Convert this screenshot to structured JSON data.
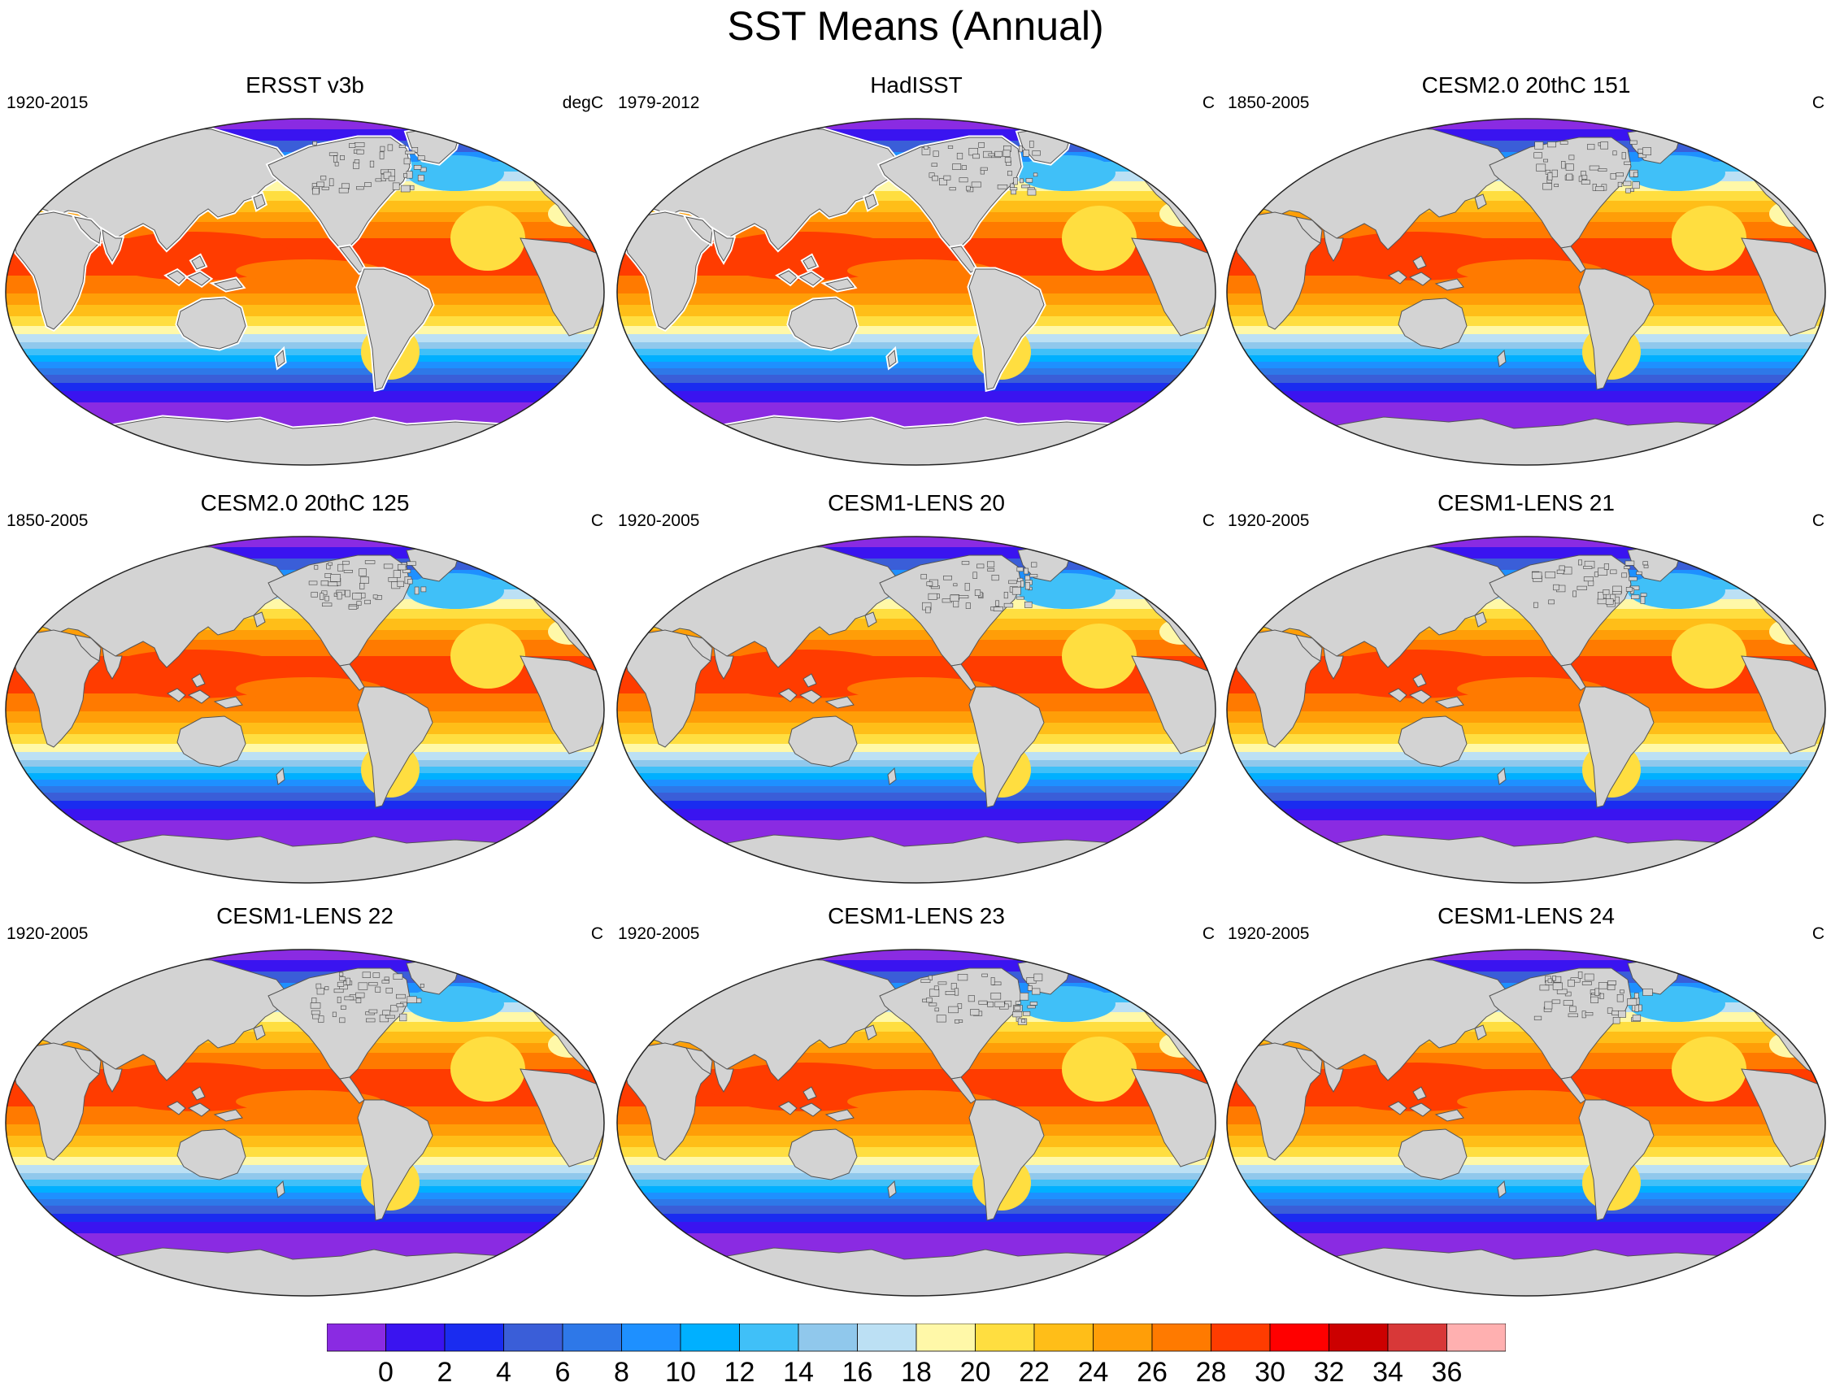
{
  "title": "SST Means (Annual)",
  "panels": [
    {
      "title": "ERSST v3b",
      "period": "1920-2015",
      "units": "degC",
      "coarse": true
    },
    {
      "title": "HadISST",
      "period": "1979-2012",
      "units": "C",
      "coarse": true
    },
    {
      "title": "CESM2.0 20thC 151",
      "period": "1850-2005",
      "units": "C",
      "coarse": false
    },
    {
      "title": "CESM2.0 20thC 125",
      "period": "1850-2005",
      "units": "C",
      "coarse": false
    },
    {
      "title": "CESM1-LENS 20",
      "period": "1920-2005",
      "units": "C",
      "coarse": false
    },
    {
      "title": "CESM1-LENS 21",
      "period": "1920-2005",
      "units": "C",
      "coarse": false
    },
    {
      "title": "CESM1-LENS 22",
      "period": "1920-2005",
      "units": "C",
      "coarse": false
    },
    {
      "title": "CESM1-LENS 23",
      "period": "1920-2005",
      "units": "C",
      "coarse": false
    },
    {
      "title": "CESM1-LENS 24",
      "period": "1920-2005",
      "units": "C",
      "coarse": false
    }
  ],
  "colorbar": {
    "labels": [
      "0",
      "2",
      "4",
      "6",
      "8",
      "10",
      "12",
      "14",
      "16",
      "18",
      "20",
      "22",
      "24",
      "26",
      "28",
      "30",
      "32",
      "34",
      "36"
    ],
    "colors": [
      "#8a2be2",
      "#3a14f0",
      "#1a2cf0",
      "#3a5ed8",
      "#2e78e8",
      "#1e90ff",
      "#00b0ff",
      "#40c0f8",
      "#90c8ec",
      "#bce0f4",
      "#fff8a8",
      "#ffde40",
      "#ffbe18",
      "#ff9e08",
      "#ff7a00",
      "#ff3c00",
      "#ff0000",
      "#cc0000",
      "#d83838",
      "#ffb0b0"
    ]
  },
  "land_color": "#d3d3d3",
  "map_projection": "Robinson"
}
